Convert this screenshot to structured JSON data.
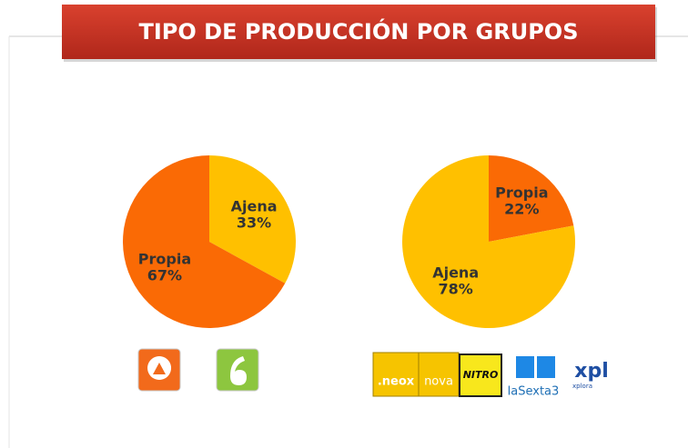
{
  "title": "TIPO DE PRODUCCIÓN POR GRUPOS",
  "chart_data": [
    {
      "type": "pie",
      "categories": [
        "Ajena",
        "Propia"
      ],
      "values": [
        33,
        67
      ],
      "value_labels": [
        "33%",
        "67%"
      ],
      "colors": [
        "#FFC000",
        "#FA6A05"
      ]
    },
    {
      "type": "pie",
      "categories": [
        "Propia",
        "Ajena"
      ],
      "values": [
        22,
        78
      ],
      "value_labels": [
        "22%",
        "78%"
      ],
      "colors": [
        "#FA6A05",
        "#FFC000"
      ]
    }
  ],
  "logos": [
    ".neox",
    "nova",
    "NITRO",
    "laSexta3",
    "xpl",
    "xplora"
  ]
}
